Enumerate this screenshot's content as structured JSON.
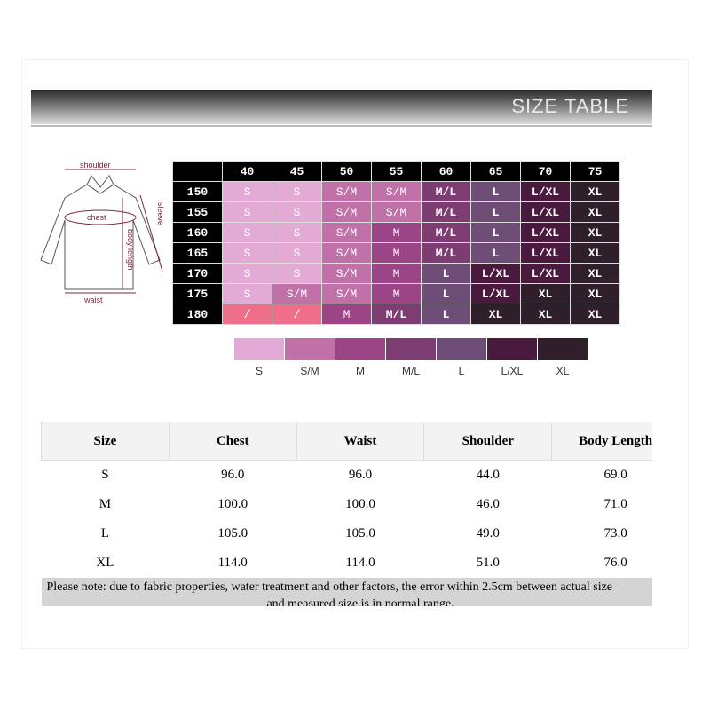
{
  "banner_title": "SIZE TABLE",
  "diagram_labels": {
    "shoulder": "shoulder",
    "chest": "chest",
    "sleeve": "sleeve",
    "body_length": "body length",
    "waist": "waist"
  },
  "colors": {
    "S": "#e4aad6",
    "S/M": "#c072a8",
    "M": "#9c4586",
    "M/L": "#7e3d72",
    "L": "#6e4e76",
    "L/XL": "#4a1a3e",
    "XL": "#2e1f2a",
    "/": "#ef6e8a"
  },
  "grid": {
    "weights": [
      "40",
      "45",
      "50",
      "55",
      "60",
      "65",
      "70",
      "75"
    ],
    "rows": [
      {
        "height": "150",
        "sizes": [
          "S",
          "S",
          "S/M",
          "S/M",
          "M/L",
          "L",
          "L/XL",
          "XL"
        ]
      },
      {
        "height": "155",
        "sizes": [
          "S",
          "S",
          "S/M",
          "S/M",
          "M/L",
          "L",
          "L/XL",
          "XL"
        ]
      },
      {
        "height": "160",
        "sizes": [
          "S",
          "S",
          "S/M",
          "M",
          "M/L",
          "L",
          "L/XL",
          "XL"
        ]
      },
      {
        "height": "165",
        "sizes": [
          "S",
          "S",
          "S/M",
          "M",
          "M/L",
          "L",
          "L/XL",
          "XL"
        ]
      },
      {
        "height": "170",
        "sizes": [
          "S",
          "S",
          "S/M",
          "M",
          "L",
          "L/XL",
          "L/XL",
          "XL"
        ]
      },
      {
        "height": "175",
        "sizes": [
          "S",
          "S/M",
          "S/M",
          "M",
          "L",
          "L/XL",
          "XL",
          "XL"
        ]
      },
      {
        "height": "180",
        "sizes": [
          "/",
          "/",
          "M",
          "M/L",
          "L",
          "XL",
          "XL",
          "XL"
        ]
      }
    ]
  },
  "legend": [
    "S",
    "S/M",
    "M",
    "M/L",
    "L",
    "L/XL",
    "XL"
  ],
  "measure_table": {
    "headers": [
      "Size",
      "Chest",
      "Waist",
      "Shoulder",
      "Body Length"
    ],
    "rows": [
      [
        "S",
        "96.0",
        "96.0",
        "44.0",
        "69.0"
      ],
      [
        "M",
        "100.0",
        "100.0",
        "46.0",
        "71.0"
      ],
      [
        "L",
        "105.0",
        "105.0",
        "49.0",
        "73.0"
      ],
      [
        "XL",
        "114.0",
        "114.0",
        "51.0",
        "76.0"
      ]
    ],
    "note_line1": "Please note: due to fabric properties, water treatment and other factors, the error within 2.5cm between actual size",
    "note_line2": "and measured size is in normal range."
  }
}
